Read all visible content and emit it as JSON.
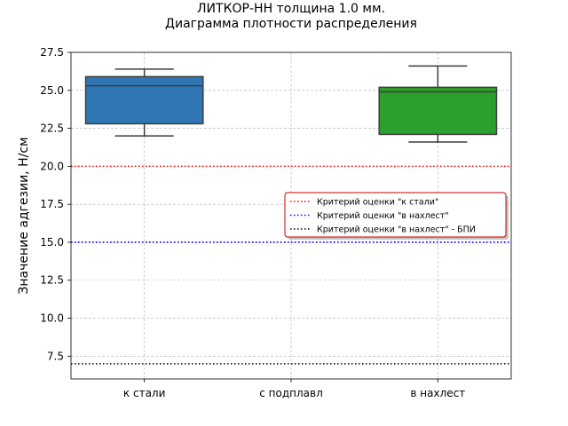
{
  "chart_data": {
    "type": "box",
    "title_lines": [
      "ЛИТКОР-НН толщина 1.0 мм.",
      "Диаграмма плотности распределения"
    ],
    "xlabel": "",
    "ylabel": "Значение адгезии, Н/см",
    "ylim": [
      6.0,
      27.5
    ],
    "yticks": [
      7.5,
      10.0,
      12.5,
      15.0,
      17.5,
      20.0,
      22.5,
      25.0,
      27.5
    ],
    "grid": true,
    "legend_position": "center-right",
    "categories": [
      "к стали",
      "с подплавл",
      "в нахлест"
    ],
    "boxes": [
      {
        "category": "к стали",
        "whisker_low": 22.0,
        "q1": 22.8,
        "median": 25.3,
        "q3": 25.9,
        "whisker_high": 26.4,
        "color": "#2f77b4"
      },
      {
        "category": "с подплавл",
        "empty": true
      },
      {
        "category": "в нахлест",
        "whisker_low": 21.6,
        "q1": 22.1,
        "median": 24.9,
        "q3": 25.2,
        "whisker_high": 26.6,
        "color": "#2ca02c"
      }
    ],
    "reference_lines": [
      {
        "label": "Критерий оценки \"к стали\"",
        "y": 20.0,
        "color": "#ff0000"
      },
      {
        "label": "Критерий оценки \"в нахлест\"",
        "y": 15.0,
        "color": "#0000ff"
      },
      {
        "label": "Критерий оценки \"в нахлест\" - БПИ",
        "y": 7.0,
        "color": "#000000"
      }
    ]
  }
}
